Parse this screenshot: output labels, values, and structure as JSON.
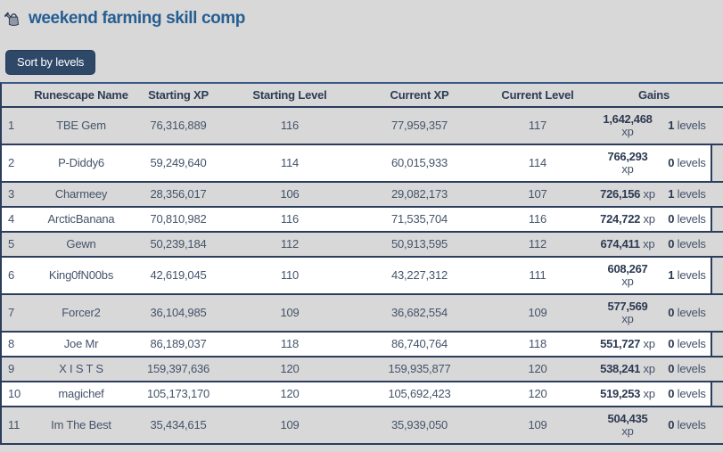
{
  "header": {
    "title": "weekend farming skill comp",
    "icon": "watering-can-icon",
    "sort_button_label": "Sort by levels"
  },
  "table": {
    "headers": [
      "Runescape Name",
      "Starting XP",
      "Starting Level",
      "Current XP",
      "Current Level",
      "Gains"
    ],
    "units": {
      "xp": "xp",
      "levels": "levels"
    },
    "rows": [
      {
        "rank": "1",
        "name": "TBE Gem",
        "starting_xp": "76,316,889",
        "starting_level": "116",
        "current_xp": "77,959,357",
        "current_level": "117",
        "gains_xp": "1,642,468",
        "gains_xp_wrap": true,
        "gains_levels": "1"
      },
      {
        "rank": "2",
        "name": "P-Diddy6",
        "starting_xp": "59,249,640",
        "starting_level": "114",
        "current_xp": "60,015,933",
        "current_level": "114",
        "gains_xp": "766,293",
        "gains_xp_wrap": true,
        "gains_levels": "0"
      },
      {
        "rank": "3",
        "name": "Charmeey",
        "starting_xp": "28,356,017",
        "starting_level": "106",
        "current_xp": "29,082,173",
        "current_level": "107",
        "gains_xp": "726,156",
        "gains_xp_wrap": false,
        "gains_levels": "1"
      },
      {
        "rank": "4",
        "name": "ArcticBanana",
        "starting_xp": "70,810,982",
        "starting_level": "116",
        "current_xp": "71,535,704",
        "current_level": "116",
        "gains_xp": "724,722",
        "gains_xp_wrap": false,
        "gains_levels": "0"
      },
      {
        "rank": "5",
        "name": "Gewn",
        "starting_xp": "50,239,184",
        "starting_level": "112",
        "current_xp": "50,913,595",
        "current_level": "112",
        "gains_xp": "674,411",
        "gains_xp_wrap": false,
        "gains_levels": "0"
      },
      {
        "rank": "6",
        "name": "King0fN00bs",
        "starting_xp": "42,619,045",
        "starting_level": "110",
        "current_xp": "43,227,312",
        "current_level": "111",
        "gains_xp": "608,267",
        "gains_xp_wrap": true,
        "gains_levels": "1"
      },
      {
        "rank": "7",
        "name": "Forcer2",
        "starting_xp": "36,104,985",
        "starting_level": "109",
        "current_xp": "36,682,554",
        "current_level": "109",
        "gains_xp": "577,569",
        "gains_xp_wrap": true,
        "gains_levels": "0"
      },
      {
        "rank": "8",
        "name": "Joe Mr",
        "starting_xp": "86,189,037",
        "starting_level": "118",
        "current_xp": "86,740,764",
        "current_level": "118",
        "gains_xp": "551,727",
        "gains_xp_wrap": false,
        "gains_levels": "0"
      },
      {
        "rank": "9",
        "name": "X I S T S",
        "starting_xp": "159,397,636",
        "starting_level": "120",
        "current_xp": "159,935,877",
        "current_level": "120",
        "gains_xp": "538,241",
        "gains_xp_wrap": false,
        "gains_levels": "0"
      },
      {
        "rank": "10",
        "name": "magichef",
        "starting_xp": "105,173,170",
        "starting_level": "120",
        "current_xp": "105,692,423",
        "current_level": "120",
        "gains_xp": "519,253",
        "gains_xp_wrap": false,
        "gains_levels": "0"
      },
      {
        "rank": "11",
        "name": "Im The Best",
        "starting_xp": "35,434,615",
        "starting_level": "109",
        "current_xp": "35,939,050",
        "current_level": "109",
        "gains_xp": "504,435",
        "gains_xp_wrap": true,
        "gains_levels": "0"
      }
    ]
  },
  "colors": {
    "page_bg": "#d8d8d8",
    "row_white": "#ffffff",
    "separator_navy": "#2c3c5c",
    "table_top_line": "#3a5a85",
    "title_blue": "#265e92",
    "button_bg": "#2e4868",
    "text": "#44536b",
    "header_text": "#2d3c55"
  }
}
